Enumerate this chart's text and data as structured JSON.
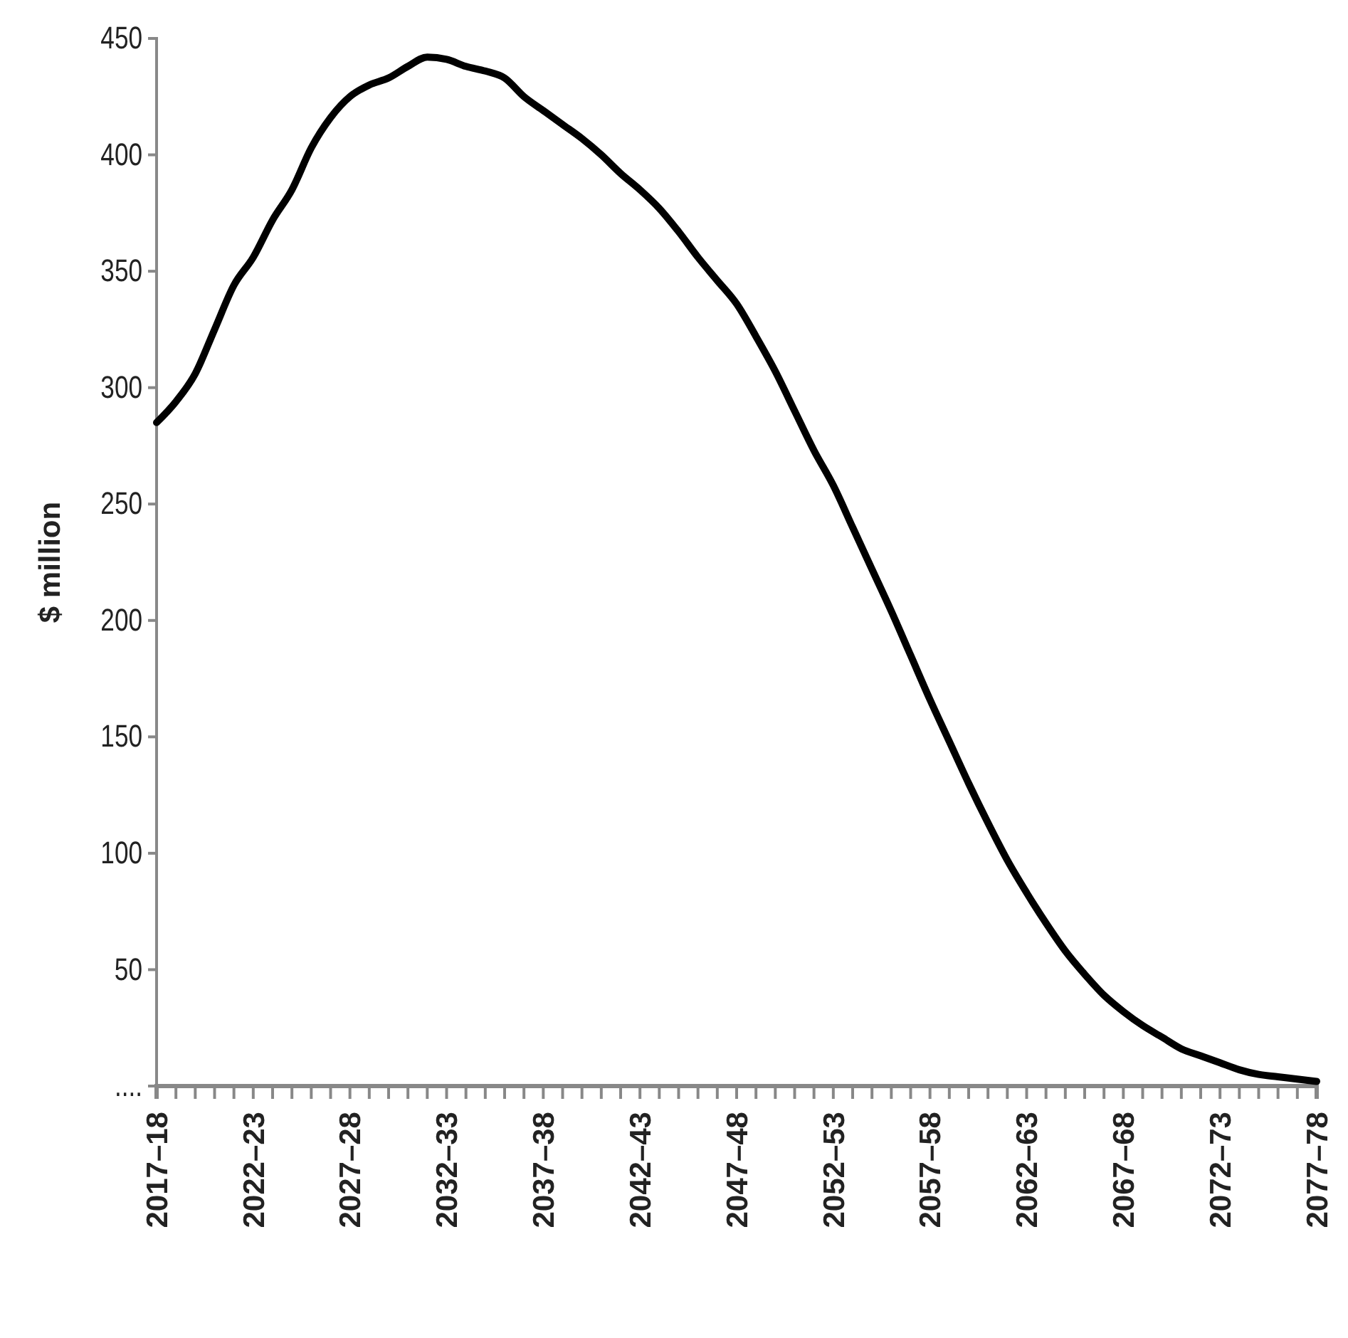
{
  "chart_data": {
    "type": "line",
    "ylabel": "$ million",
    "categories": [
      "2017–18",
      null,
      null,
      null,
      null,
      "2022–23",
      null,
      null,
      null,
      null,
      "2027–28",
      null,
      null,
      null,
      null,
      "2032–33",
      null,
      null,
      null,
      null,
      "2037–38",
      null,
      null,
      null,
      null,
      "2042–43",
      null,
      null,
      null,
      null,
      "2047–48",
      null,
      null,
      null,
      null,
      "2052–53",
      null,
      null,
      null,
      null,
      "2057–58",
      null,
      null,
      null,
      null,
      "2062–63",
      null,
      null,
      null,
      null,
      "2067–68",
      null,
      null,
      null,
      null,
      "2072–73",
      null,
      null,
      null,
      null,
      "2077–78"
    ],
    "series": [
      {
        "color": "#000000",
        "values": [
          285,
          294,
          306,
          325,
          344,
          356,
          372,
          385,
          403,
          416,
          425,
          430,
          433,
          438,
          442,
          441,
          438,
          436,
          433,
          425,
          419,
          413,
          407,
          400,
          392,
          385,
          377,
          367,
          356,
          346,
          336,
          322,
          307,
          290,
          273,
          258,
          240,
          222,
          204,
          185,
          166,
          148,
          130,
          113,
          97,
          83,
          70,
          58,
          48,
          39,
          32,
          26,
          21,
          16,
          13,
          10,
          7,
          5,
          4,
          3,
          2
        ]
      }
    ],
    "ylim": [
      0,
      450
    ],
    "yticks": [
      {
        "value": 0,
        "label": "...."
      },
      50,
      100,
      150,
      200,
      250,
      300,
      350,
      400,
      450
    ],
    "grid": false,
    "marker": "none",
    "line_style": "solid"
  }
}
